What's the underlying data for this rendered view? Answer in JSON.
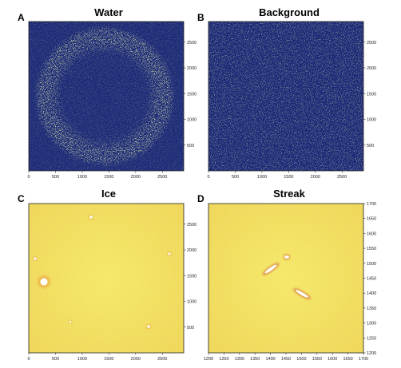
{
  "colors": {
    "navy": "#1c2a78",
    "yellow_green": "#c8d66a",
    "ice_yellow": "#f3e35a",
    "ice_orange": "#e8a040",
    "spot_white": "#ffffff",
    "spot_red": "#c8402a"
  },
  "panels": [
    {
      "id": "A",
      "letter": "A",
      "title": "Water",
      "texture": "noise-ring",
      "x_ticks": [
        "0",
        "500",
        "1000",
        "1500",
        "2000",
        "2500"
      ],
      "x_tick_values": [
        0,
        500,
        1000,
        1500,
        2000,
        2500
      ],
      "x_range": [
        0,
        2900
      ],
      "y_ticks": [
        "500",
        "1000",
        "1500",
        "2000",
        "2500"
      ],
      "y_tick_values": [
        500,
        1000,
        1500,
        2000,
        2500
      ],
      "y_range": [
        0,
        2900
      ]
    },
    {
      "id": "B",
      "letter": "B",
      "title": "Background",
      "texture": "noise",
      "x_ticks": [
        "0",
        "500",
        "1000",
        "1500",
        "2000",
        "2500"
      ],
      "x_tick_values": [
        0,
        500,
        1000,
        1500,
        2000,
        2500
      ],
      "x_range": [
        0,
        2900
      ],
      "y_ticks": [
        "500",
        "1000",
        "1500",
        "2000",
        "2500"
      ],
      "y_tick_values": [
        500,
        1000,
        1500,
        2000,
        2500
      ],
      "y_range": [
        0,
        2900
      ]
    },
    {
      "id": "C",
      "letter": "C",
      "title": "Ice",
      "texture": "ice",
      "x_ticks": [
        "0",
        "500",
        "1000",
        "1500",
        "2000",
        "2500"
      ],
      "x_tick_values": [
        0,
        500,
        1000,
        1500,
        2000,
        2500
      ],
      "x_range": [
        0,
        2900
      ],
      "y_ticks": [
        "500",
        "1000",
        "1500",
        "2000",
        "2500"
      ],
      "y_tick_values": [
        500,
        1000,
        1500,
        2000,
        2500
      ],
      "y_range": [
        0,
        2900
      ]
    },
    {
      "id": "D",
      "letter": "D",
      "title": "Streak",
      "texture": "streak",
      "x_ticks": [
        "1200",
        "1250",
        "1300",
        "1350",
        "1400",
        "1450",
        "1500",
        "1550",
        "1600",
        "1650",
        "1700"
      ],
      "x_tick_values": [
        1200,
        1250,
        1300,
        1350,
        1400,
        1450,
        1500,
        1550,
        1600,
        1650,
        1700
      ],
      "x_range": [
        1200,
        1700
      ],
      "y_ticks": [
        "1200",
        "1250",
        "1300",
        "1350",
        "1400",
        "1450",
        "1500",
        "1550",
        "1600",
        "1650",
        "1700"
      ],
      "y_tick_values": [
        1200,
        1250,
        1300,
        1350,
        1400,
        1450,
        1500,
        1550,
        1600,
        1650,
        1700
      ],
      "y_range": [
        1200,
        1700
      ]
    }
  ]
}
